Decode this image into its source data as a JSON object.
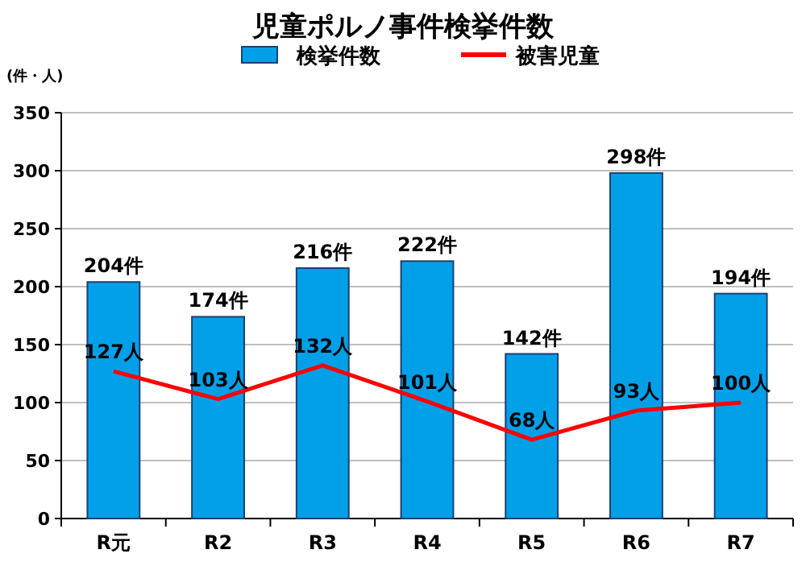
{
  "chart_data": {
    "type": "bar",
    "title": "児童ポルノ事件検挙件数",
    "ylabel": "(件・人)",
    "categories": [
      "R元",
      "R2",
      "R3",
      "R4",
      "R5",
      "R6",
      "R7"
    ],
    "series": [
      {
        "name": "検挙件数",
        "color": "#00a0e9",
        "values": [
          204,
          174,
          216,
          222,
          142,
          298,
          194
        ],
        "value_labels": [
          "204件",
          "174件",
          "216件",
          "222件",
          "142件",
          "298件",
          "194件"
        ]
      },
      {
        "name": "被害児童",
        "type": "line",
        "color": "#ff0000",
        "values": [
          127,
          103,
          132,
          101,
          68,
          93,
          100
        ],
        "value_labels": [
          "127人",
          "103人",
          "132人",
          "101人",
          "68人",
          "93人",
          "100人"
        ]
      }
    ],
    "ylim": [
      0,
      350
    ],
    "yticks": [
      0,
      50,
      100,
      150,
      200,
      250,
      300,
      350
    ],
    "grid": "y",
    "legend": "top"
  }
}
